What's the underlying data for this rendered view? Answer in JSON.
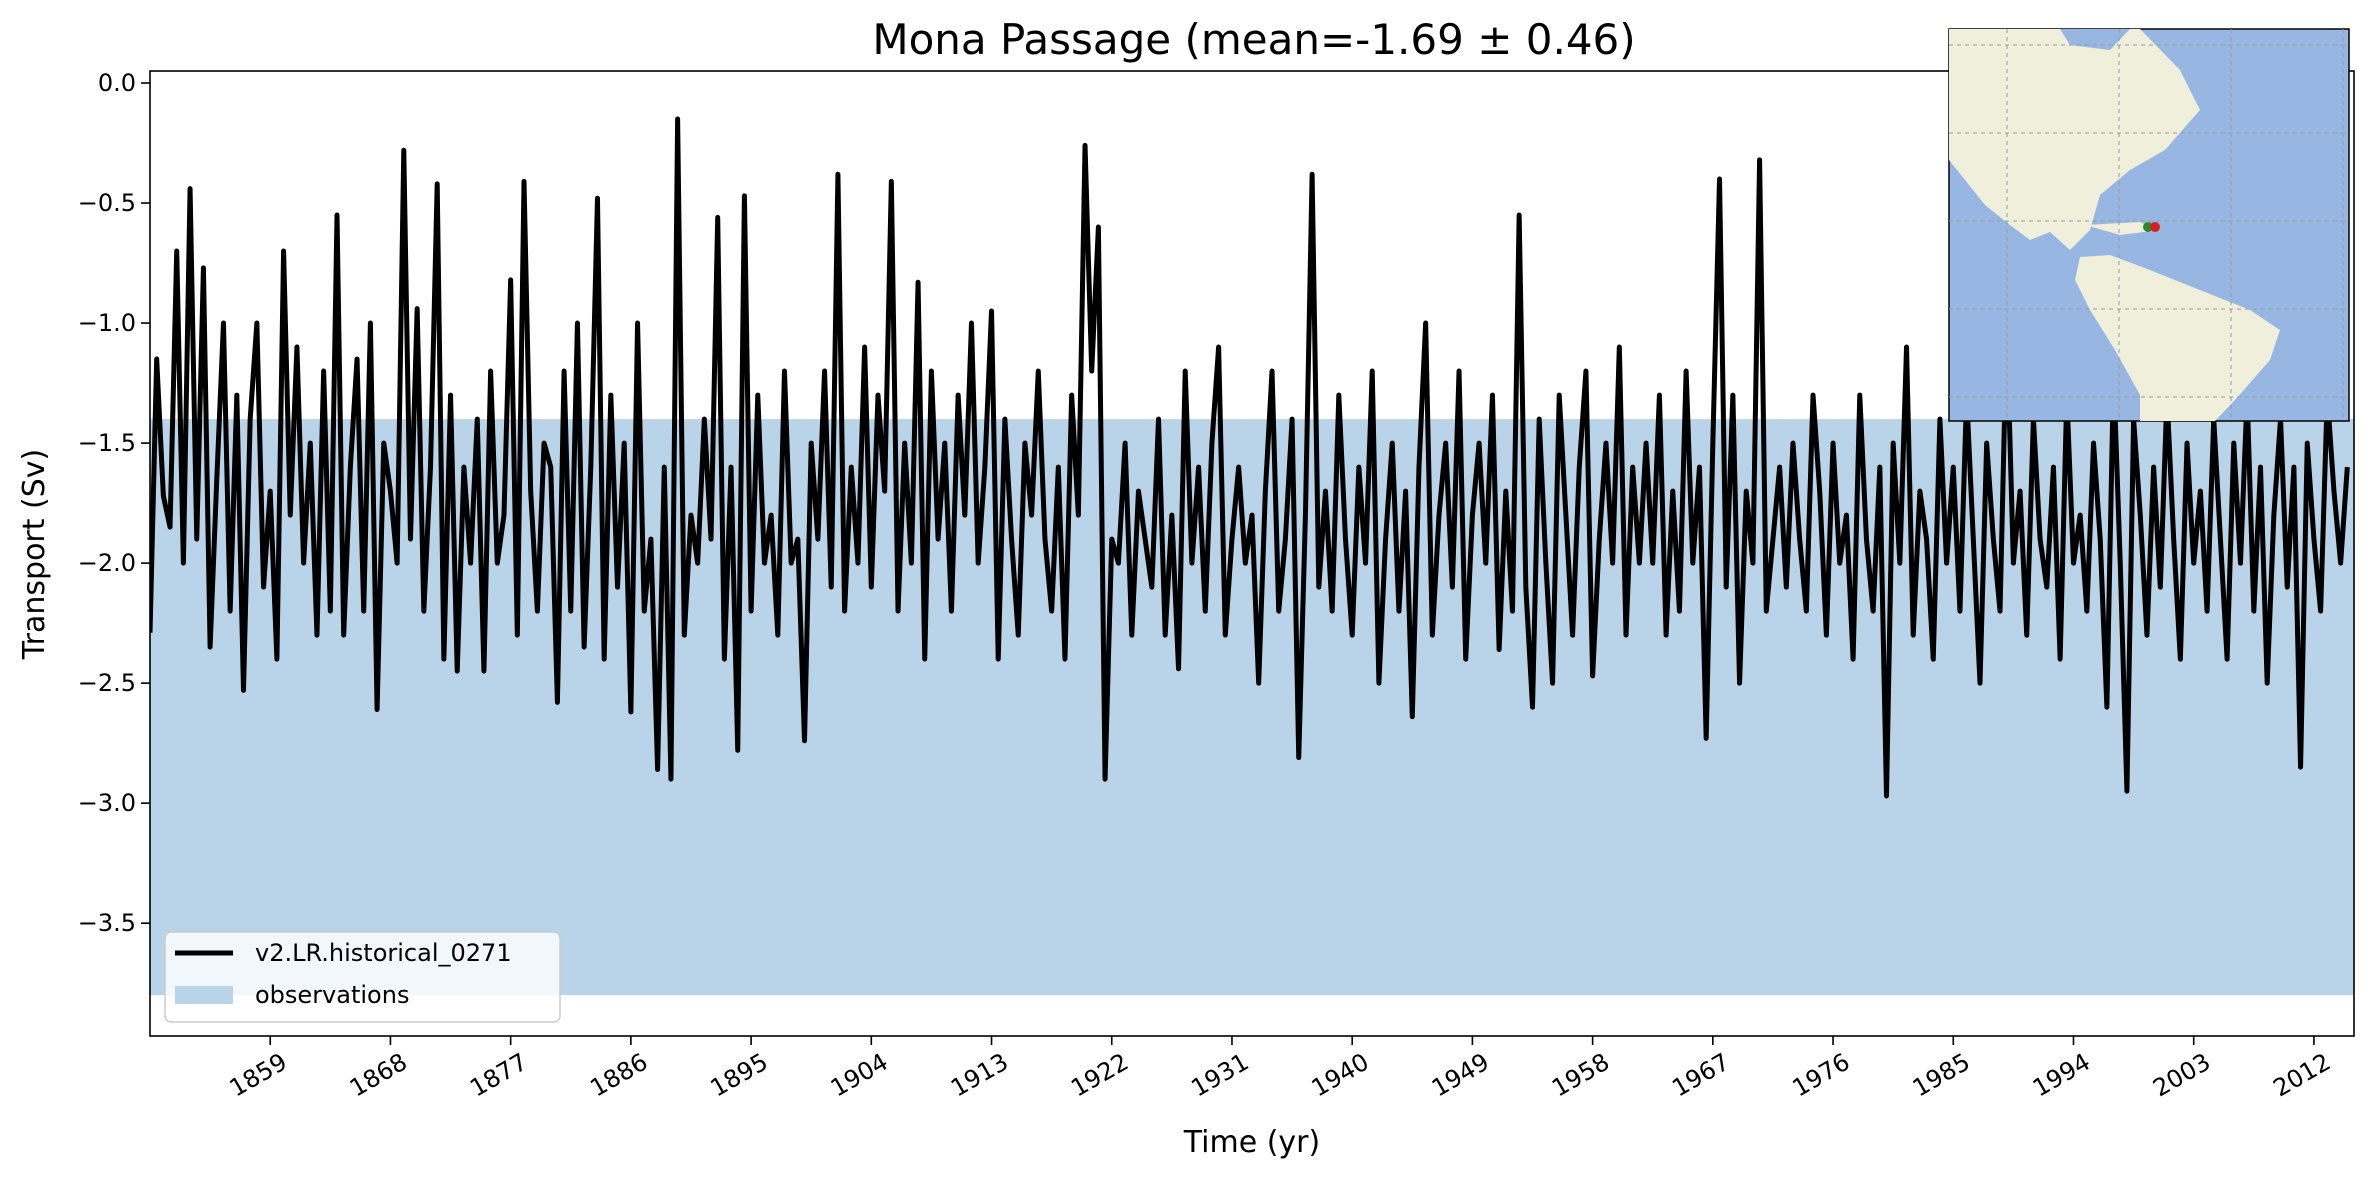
{
  "chart_data": {
    "type": "line",
    "title": "Mona Passage (mean=-1.69 ± 0.46)",
    "x_label": "Time (yr)",
    "y_label": "Transport (Sv)",
    "xlim": [
      1850,
      2015
    ],
    "ylim": [
      -3.97,
      0.05
    ],
    "xticks": [
      1859,
      1868,
      1877,
      1886,
      1895,
      1904,
      1913,
      1922,
      1931,
      1940,
      1949,
      1958,
      1967,
      1976,
      1985,
      1994,
      2003,
      2012
    ],
    "yticks": [
      {
        "value": 0,
        "label": "0.0"
      },
      {
        "value": -0.5,
        "label": "−0.5"
      },
      {
        "value": -1,
        "label": "−1.0"
      },
      {
        "value": -1.5,
        "label": "−1.5"
      },
      {
        "value": -2,
        "label": "−2.0"
      },
      {
        "value": -2.5,
        "label": "−2.5"
      },
      {
        "value": -3,
        "label": "−3.0"
      },
      {
        "value": -3.5,
        "label": "−3.5"
      }
    ],
    "legend": "lower left",
    "band": {
      "name": "observations",
      "range": [
        -3.8,
        -1.4
      ],
      "color": "#b9d4e8"
    },
    "x": [
      1850,
      1850.5,
      1851,
      1851.5,
      1852,
      1852.5,
      1853,
      1853.5,
      1854,
      1854.5,
      1855,
      1855.5,
      1856,
      1856.5,
      1857,
      1857.5,
      1858,
      1858.5,
      1859,
      1859.5,
      1860,
      1860.5,
      1861,
      1861.5,
      1862,
      1862.5,
      1863,
      1863.5,
      1864,
      1864.5,
      1865,
      1865.5,
      1866,
      1866.5,
      1867,
      1867.5,
      1868,
      1868.5,
      1869,
      1869.5,
      1870,
      1870.5,
      1871,
      1871.5,
      1872,
      1872.5,
      1873,
      1873.5,
      1874,
      1874.5,
      1875,
      1875.5,
      1876,
      1876.5,
      1877,
      1877.5,
      1878,
      1878.5,
      1879,
      1879.5,
      1880,
      1880.5,
      1881,
      1881.5,
      1882,
      1882.5,
      1883,
      1883.5,
      1884,
      1884.5,
      1885,
      1885.5,
      1886,
      1886.5,
      1887,
      1887.5,
      1888,
      1888.5,
      1889,
      1889.5,
      1890,
      1890.5,
      1891,
      1891.5,
      1892,
      1892.5,
      1893,
      1893.5,
      1894,
      1894.5,
      1895,
      1895.5,
      1896,
      1896.5,
      1897,
      1897.5,
      1898,
      1898.5,
      1899,
      1899.5,
      1900,
      1900.5,
      1901,
      1901.5,
      1902,
      1902.5,
      1903,
      1903.5,
      1904,
      1904.5,
      1905,
      1905.5,
      1906,
      1906.5,
      1907,
      1907.5,
      1908,
      1908.5,
      1909,
      1909.5,
      1910,
      1910.5,
      1911,
      1911.5,
      1912,
      1912.5,
      1913,
      1913.5,
      1914,
      1914.5,
      1915,
      1915.5,
      1916,
      1916.5,
      1917,
      1917.5,
      1918,
      1918.5,
      1919,
      1919.5,
      1920,
      1920.5,
      1921,
      1921.5,
      1922,
      1922.5,
      1923,
      1923.5,
      1924,
      1924.5,
      1925,
      1925.5,
      1926,
      1926.5,
      1927,
      1927.5,
      1928,
      1928.5,
      1929,
      1929.5,
      1930,
      1930.5,
      1931,
      1931.5,
      1932,
      1932.5,
      1933,
      1933.5,
      1934,
      1934.5,
      1935,
      1935.5,
      1936,
      1936.5,
      1937,
      1937.5,
      1938,
      1938.5,
      1939,
      1939.5,
      1940,
      1940.5,
      1941,
      1941.5,
      1942,
      1942.5,
      1943,
      1943.5,
      1944,
      1944.5,
      1945,
      1945.5,
      1946,
      1946.5,
      1947,
      1947.5,
      1948,
      1948.5,
      1949,
      1949.5,
      1950,
      1950.5,
      1951,
      1951.5,
      1952,
      1952.5,
      1953,
      1953.5,
      1954,
      1954.5,
      1955,
      1955.5,
      1956,
      1956.5,
      1957,
      1957.5,
      1958,
      1958.5,
      1959,
      1959.5,
      1960,
      1960.5,
      1961,
      1961.5,
      1962,
      1962.5,
      1963,
      1963.5,
      1964,
      1964.5,
      1965,
      1965.5,
      1966,
      1966.5,
      1967,
      1967.5,
      1968,
      1968.5,
      1969,
      1969.5,
      1970,
      1970.5,
      1971,
      1971.5,
      1972,
      1972.5,
      1973,
      1973.5,
      1974,
      1974.5,
      1975,
      1975.5,
      1976,
      1976.5,
      1977,
      1977.5,
      1978,
      1978.5,
      1979,
      1979.5,
      1980,
      1980.5,
      1981,
      1981.5,
      1982,
      1982.5,
      1983,
      1983.5,
      1984,
      1984.5,
      1985,
      1985.5,
      1986,
      1986.5,
      1987,
      1987.5,
      1988,
      1988.5,
      1989,
      1989.5,
      1990,
      1990.5,
      1991,
      1991.5,
      1992,
      1992.5,
      1993,
      1993.5,
      1994,
      1994.5,
      1995,
      1995.5,
      1996,
      1996.5,
      1997,
      1997.5,
      1998,
      1998.5,
      1999,
      1999.5,
      2000,
      2000.5,
      2001,
      2001.5,
      2002,
      2002.5,
      2003,
      2003.5,
      2004,
      2004.5,
      2005,
      2005.5,
      2006,
      2006.5,
      2007,
      2007.5,
      2008,
      2008.5,
      2009,
      2009.5,
      2010,
      2010.5,
      2011,
      2011.5,
      2012,
      2012.5,
      2013,
      2013.5,
      2014,
      2014.5
    ],
    "series": [
      {
        "name": "v2.LR.historical_0271",
        "color": "#000000",
        "values": [
          -2.29,
          -1.15,
          -1.72,
          -1.85,
          -0.7,
          -2.0,
          -0.44,
          -1.9,
          -0.77,
          -2.35,
          -1.65,
          -1.0,
          -2.2,
          -1.3,
          -2.53,
          -1.4,
          -1.0,
          -2.1,
          -1.7,
          -2.4,
          -0.7,
          -1.8,
          -1.1,
          -2.0,
          -1.5,
          -2.3,
          -1.2,
          -2.2,
          -0.55,
          -2.3,
          -1.6,
          -1.15,
          -2.2,
          -1.0,
          -2.61,
          -1.5,
          -1.7,
          -2.0,
          -0.28,
          -1.9,
          -0.94,
          -2.2,
          -1.6,
          -0.42,
          -2.4,
          -1.3,
          -2.45,
          -1.6,
          -2.0,
          -1.4,
          -2.45,
          -1.2,
          -2.0,
          -1.8,
          -0.82,
          -2.3,
          -0.41,
          -1.7,
          -2.2,
          -1.5,
          -1.6,
          -2.58,
          -1.2,
          -2.2,
          -1.0,
          -2.35,
          -1.6,
          -0.48,
          -2.4,
          -1.3,
          -2.1,
          -1.5,
          -2.62,
          -1.0,
          -2.2,
          -1.9,
          -2.86,
          -1.6,
          -2.9,
          -0.15,
          -2.3,
          -1.8,
          -2.0,
          -1.4,
          -1.9,
          -0.56,
          -2.4,
          -1.6,
          -2.78,
          -0.47,
          -2.2,
          -1.3,
          -2.0,
          -1.8,
          -2.3,
          -1.2,
          -2.0,
          -1.9,
          -2.74,
          -1.5,
          -1.9,
          -1.2,
          -2.1,
          -0.38,
          -2.2,
          -1.6,
          -2.0,
          -1.1,
          -2.1,
          -1.3,
          -1.7,
          -0.41,
          -2.2,
          -1.5,
          -2.0,
          -0.83,
          -2.4,
          -1.2,
          -1.9,
          -1.5,
          -2.2,
          -1.3,
          -1.8,
          -1.0,
          -2.0,
          -1.6,
          -0.95,
          -2.4,
          -1.4,
          -1.9,
          -2.3,
          -1.5,
          -1.8,
          -1.2,
          -1.9,
          -2.2,
          -1.6,
          -2.4,
          -1.3,
          -1.8,
          -0.26,
          -1.2,
          -0.6,
          -2.9,
          -1.9,
          -2.0,
          -1.5,
          -2.3,
          -1.7,
          -1.9,
          -2.1,
          -1.4,
          -2.3,
          -1.8,
          -2.44,
          -1.2,
          -2.0,
          -1.6,
          -2.2,
          -1.5,
          -1.1,
          -2.3,
          -1.9,
          -1.6,
          -2.0,
          -1.8,
          -2.5,
          -1.7,
          -1.2,
          -2.2,
          -1.9,
          -1.4,
          -2.81,
          -1.8,
          -0.38,
          -2.1,
          -1.7,
          -2.2,
          -1.3,
          -1.9,
          -2.3,
          -1.6,
          -2.0,
          -1.2,
          -2.5,
          -1.9,
          -1.5,
          -2.2,
          -1.7,
          -2.64,
          -1.6,
          -1.0,
          -2.3,
          -1.8,
          -1.5,
          -2.1,
          -1.2,
          -2.4,
          -1.8,
          -1.5,
          -2.0,
          -1.3,
          -2.36,
          -1.7,
          -2.2,
          -0.55,
          -2.1,
          -2.6,
          -1.4,
          -2.0,
          -2.5,
          -1.3,
          -1.8,
          -2.3,
          -1.6,
          -1.2,
          -2.47,
          -1.9,
          -1.5,
          -2.0,
          -1.1,
          -2.3,
          -1.6,
          -2.0,
          -1.5,
          -2.0,
          -1.3,
          -2.3,
          -1.7,
          -2.2,
          -1.2,
          -2.0,
          -1.6,
          -2.73,
          -1.5,
          -0.4,
          -2.1,
          -1.3,
          -2.5,
          -1.7,
          -2.0,
          -0.32,
          -2.2,
          -1.9,
          -1.6,
          -2.1,
          -1.5,
          -1.9,
          -2.2,
          -1.3,
          -1.7,
          -2.3,
          -1.5,
          -2.0,
          -1.8,
          -2.4,
          -1.3,
          -1.9,
          -2.2,
          -1.6,
          -2.97,
          -1.5,
          -2.0,
          -1.1,
          -2.3,
          -1.7,
          -1.9,
          -2.4,
          -1.4,
          -2.0,
          -1.6,
          -2.2,
          -1.3,
          -1.9,
          -2.5,
          -1.5,
          -1.9,
          -2.2,
          -1.0,
          -2.0,
          -1.7,
          -2.3,
          -1.4,
          -1.9,
          -2.1,
          -1.6,
          -2.4,
          -1.3,
          -2.0,
          -1.8,
          -2.2,
          -1.5,
          -1.9,
          -2.6,
          -1.2,
          -2.0,
          -2.95,
          -1.4,
          -1.8,
          -2.3,
          -1.6,
          -2.1,
          -1.3,
          -1.9,
          -2.4,
          -1.5,
          -2.0,
          -1.7,
          -2.2,
          -1.4,
          -1.9,
          -2.4,
          -1.5,
          -2.0,
          -1.3,
          -2.2,
          -1.6,
          -2.5,
          -1.8,
          -1.4,
          -2.1,
          -1.6,
          -2.85,
          -1.5,
          -1.9,
          -2.2,
          -1.3,
          -1.7,
          -2.0,
          -1.6
        ]
      }
    ]
  }
}
